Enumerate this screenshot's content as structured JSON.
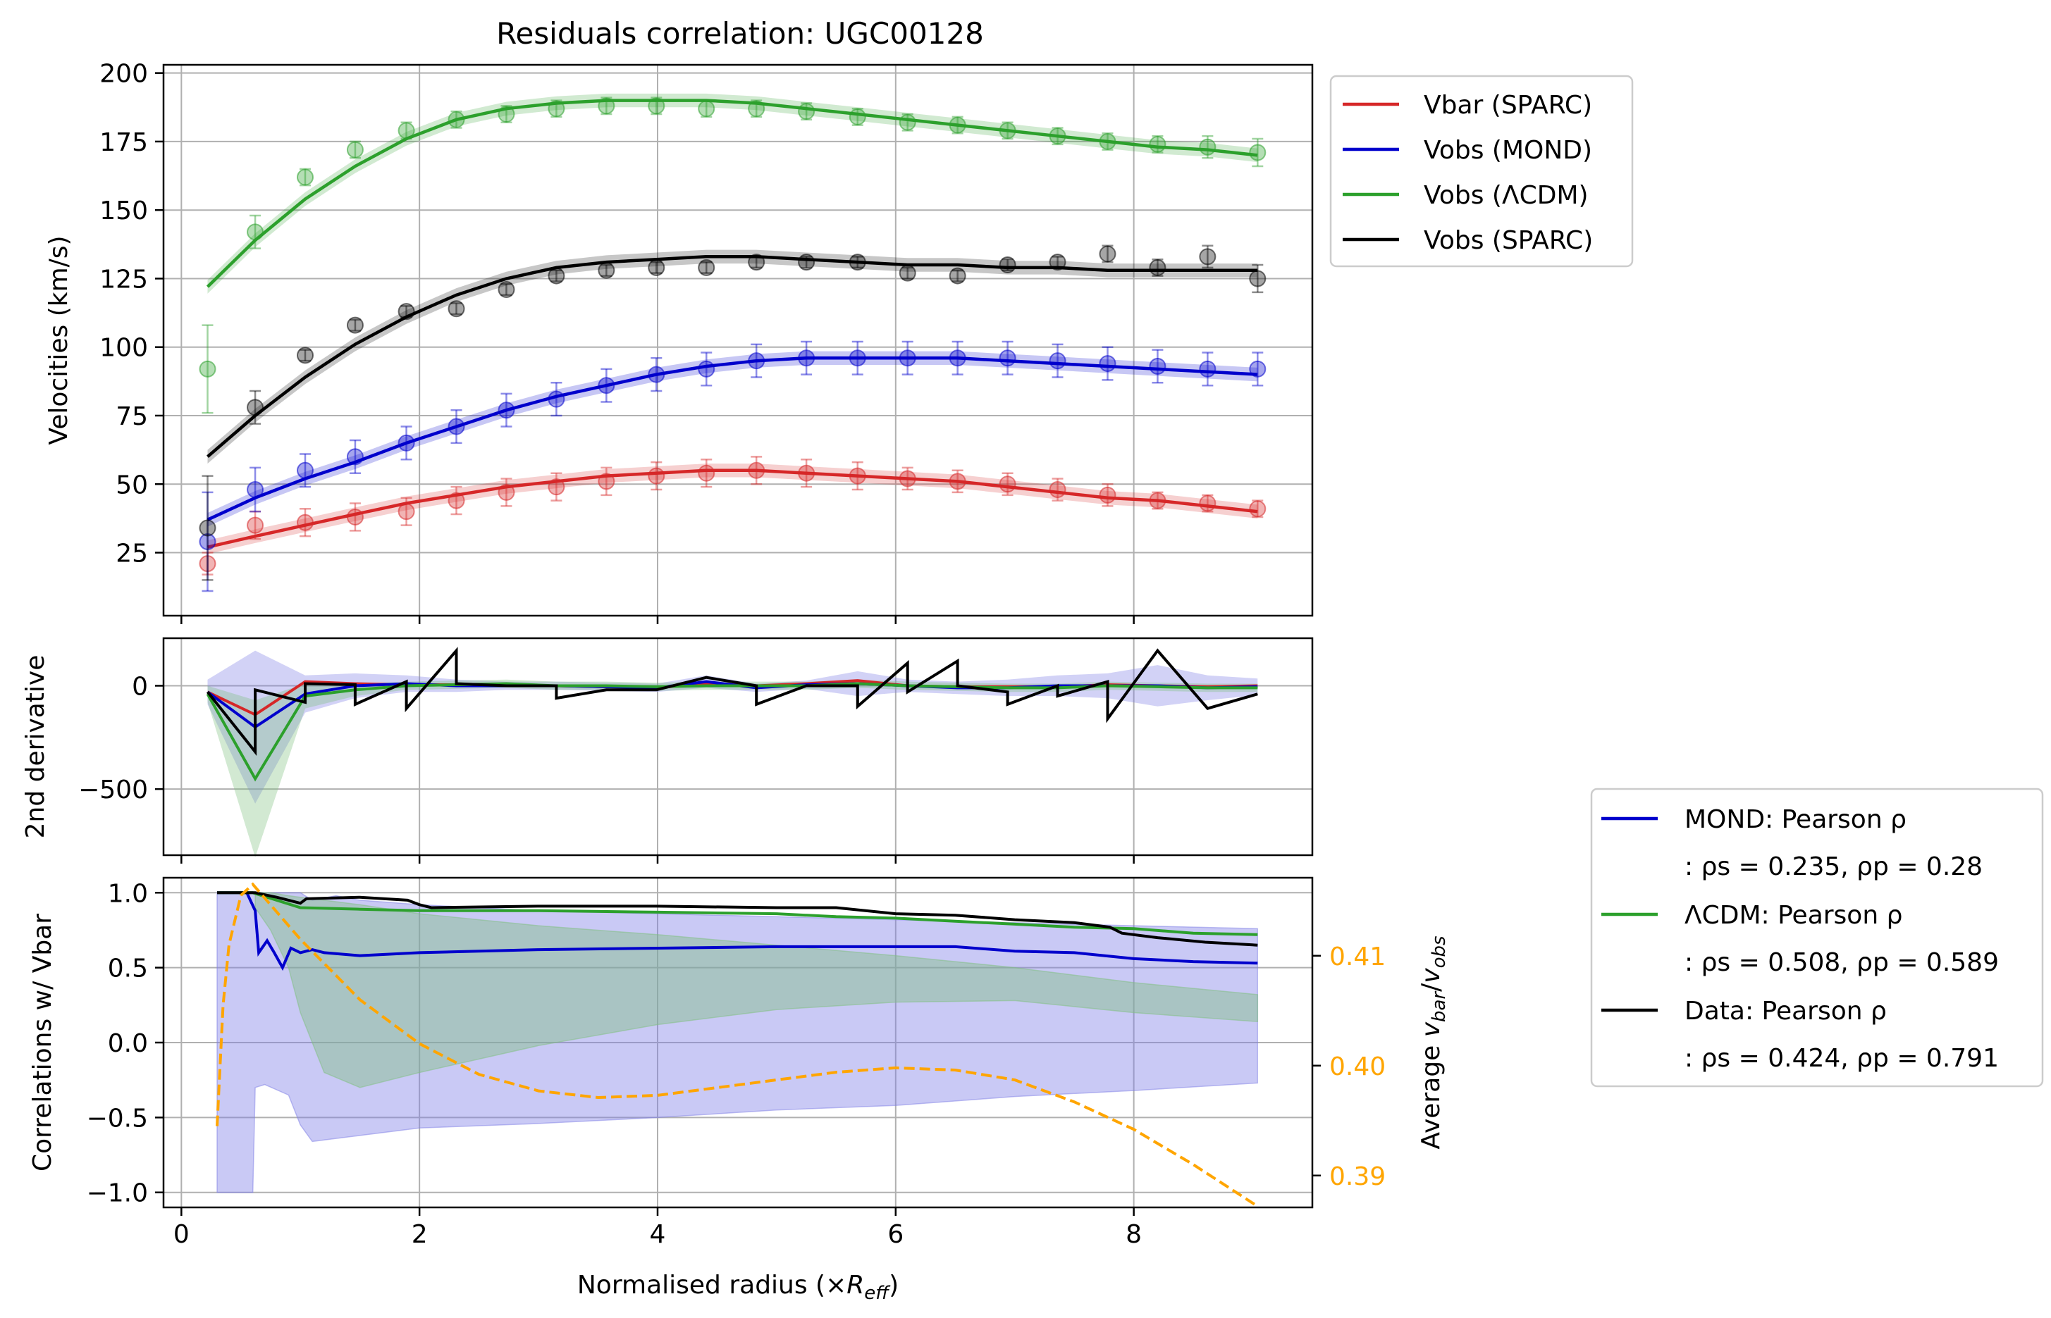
{
  "title": "Residuals correlation: UGC00128",
  "colors": {
    "vbar": "#d62728",
    "mond": "#0000cc",
    "lcdm": "#2ca02c",
    "sparc": "#000000",
    "orange": "#ffa500",
    "band_blue": "#7f7fe6",
    "band_green": "#7fbf7f"
  },
  "chart_data": [
    {
      "type": "line",
      "panel": "velocities",
      "ylabel": "Velocities (km/s)",
      "xlim": [
        -0.15,
        9.5
      ],
      "ylim": [
        2,
        203
      ],
      "yticks": [
        "25",
        "50",
        "75",
        "100",
        "125",
        "150",
        "175",
        "200"
      ],
      "ytick_values": [
        25,
        50,
        75,
        100,
        125,
        150,
        175,
        200
      ],
      "legend": {
        "placement": "outside-right-top",
        "entries": [
          "Vbar (SPARC)",
          "Vobs (MOND)",
          "Vobs (ΛCDM)",
          "Vobs (SPARC)"
        ]
      },
      "x": [
        0.22,
        0.62,
        1.04,
        1.46,
        1.89,
        2.31,
        2.73,
        3.15,
        3.57,
        3.99,
        4.41,
        4.83,
        5.25,
        5.68,
        6.1,
        6.52,
        6.94,
        7.36,
        7.78,
        8.2,
        8.62,
        9.04
      ],
      "series": [
        {
          "name": "Vbar (SPARC)",
          "color": "vbar",
          "points": [
            21,
            35,
            36,
            38,
            40,
            44,
            47,
            49,
            51,
            53,
            54,
            55,
            54,
            53,
            52,
            51,
            50,
            48,
            46,
            44,
            43,
            41
          ],
          "err": [
            4,
            5,
            5,
            5,
            5,
            5,
            5,
            5,
            5,
            5,
            5,
            5,
            5,
            5,
            4,
            4,
            4,
            4,
            4,
            3,
            3,
            3
          ],
          "fit": [
            27,
            31,
            35,
            39,
            43,
            46,
            49,
            51,
            53,
            54,
            55,
            55,
            54,
            53,
            52,
            51,
            49,
            47,
            45,
            44,
            42,
            40
          ]
        },
        {
          "name": "Vobs (MOND)",
          "color": "mond",
          "points": [
            29,
            48,
            55,
            60,
            65,
            71,
            77,
            81,
            86,
            90,
            92,
            95,
            96,
            96,
            96,
            96,
            96,
            95,
            94,
            93,
            92,
            92
          ],
          "err": [
            18,
            8,
            6,
            6,
            6,
            6,
            6,
            6,
            6,
            6,
            6,
            6,
            6,
            6,
            6,
            6,
            6,
            6,
            6,
            6,
            6,
            6
          ],
          "fit": [
            37,
            45,
            52,
            58,
            65,
            71,
            77,
            82,
            86,
            90,
            93,
            95,
            96,
            96,
            96,
            96,
            95,
            94,
            93,
            92,
            91,
            90
          ]
        },
        {
          "name": "Vobs (ΛCDM)",
          "color": "lcdm",
          "points": [
            92,
            142,
            162,
            172,
            179,
            183,
            185,
            187,
            188,
            188,
            187,
            187,
            186,
            184,
            182,
            181,
            179,
            177,
            175,
            174,
            173,
            171
          ],
          "err": [
            16,
            6,
            3,
            3,
            3,
            3,
            3,
            3,
            3,
            3,
            3,
            3,
            3,
            3,
            3,
            3,
            3,
            3,
            3,
            3,
            4,
            5
          ],
          "fit": [
            122,
            139,
            154,
            166,
            176,
            183,
            187,
            189,
            190,
            190,
            190,
            189,
            187,
            185,
            183,
            181,
            179,
            177,
            175,
            173,
            172,
            170
          ]
        },
        {
          "name": "Vobs (SPARC)",
          "color": "sparc",
          "points": [
            34,
            78,
            97,
            108,
            113,
            114,
            121,
            126,
            128,
            129,
            129,
            131,
            131,
            131,
            127,
            126,
            130,
            131,
            134,
            129,
            133,
            125
          ],
          "err": [
            19,
            6,
            2,
            2,
            2,
            2,
            2,
            2,
            2,
            2,
            2,
            2,
            2,
            2,
            2,
            2,
            2,
            2,
            3,
            3,
            4,
            5
          ],
          "fit": [
            60,
            75,
            89,
            101,
            111,
            119,
            125,
            129,
            131,
            132,
            133,
            133,
            132,
            131,
            130,
            130,
            129,
            129,
            128,
            128,
            128,
            128
          ]
        }
      ]
    },
    {
      "type": "line",
      "panel": "second-derivative",
      "ylabel": "2nd derivative",
      "xlim": [
        -0.15,
        9.5
      ],
      "ylim": [
        -820,
        230
      ],
      "yticks": [
        "0",
        "−500"
      ],
      "ytick_values": [
        0,
        -500
      ],
      "series": [
        {
          "name": "Vbar",
          "color": "vbar",
          "x": [
            0.22,
            0.62,
            1.04,
            1.46,
            1.89,
            2.31,
            2.73,
            3.15,
            3.57,
            3.99,
            4.41,
            4.83,
            5.25,
            5.68,
            6.1,
            6.52,
            6.94,
            7.36,
            7.78,
            8.2,
            8.62,
            9.04
          ],
          "y": [
            -30,
            -140,
            20,
            10,
            5,
            5,
            0,
            0,
            -5,
            -10,
            10,
            0,
            10,
            25,
            0,
            -5,
            -5,
            -5,
            5,
            0,
            -5,
            0
          ]
        },
        {
          "name": "MOND",
          "color": "mond",
          "x": [
            0.22,
            0.62,
            1.04,
            1.46,
            1.89,
            2.31,
            2.73,
            3.15,
            3.57,
            3.99,
            4.41,
            4.83,
            5.25,
            5.68,
            6.1,
            6.52,
            6.94,
            7.36,
            7.78,
            8.2,
            8.62,
            9.04
          ],
          "y": [
            -30,
            -200,
            -40,
            0,
            10,
            0,
            0,
            0,
            -5,
            -10,
            20,
            -10,
            5,
            10,
            0,
            -10,
            -10,
            0,
            0,
            0,
            -10,
            -5
          ]
        },
        {
          "name": "ΛCDM",
          "color": "lcdm",
          "x": [
            0.22,
            0.62,
            1.04,
            1.46,
            1.89,
            2.31,
            2.73,
            3.15,
            3.57,
            3.99,
            4.41,
            4.83,
            5.25,
            5.68,
            6.1,
            6.52,
            6.94,
            7.36,
            7.78,
            8.2,
            8.62,
            9.04
          ],
          "y": [
            -40,
            -450,
            -50,
            -20,
            0,
            5,
            10,
            0,
            0,
            -5,
            0,
            0,
            0,
            10,
            0,
            -5,
            -10,
            -10,
            0,
            -5,
            -10,
            -10
          ]
        },
        {
          "name": "Data",
          "color": "sparc",
          "x": [
            0.22,
            0.62,
            0.62,
            1.04,
            1.04,
            1.46,
            1.46,
            1.89,
            1.89,
            2.31,
            2.31,
            2.73,
            3.15,
            3.15,
            3.57,
            3.99,
            4.41,
            4.83,
            4.83,
            5.25,
            5.68,
            5.68,
            6.1,
            6.1,
            6.52,
            6.52,
            6.94,
            6.94,
            7.36,
            7.36,
            7.78,
            7.78,
            8.2,
            8.62,
            9.04
          ],
          "y": [
            -30,
            -320,
            -20,
            -80,
            10,
            5,
            -90,
            20,
            -110,
            170,
            10,
            0,
            0,
            -60,
            -20,
            -20,
            40,
            0,
            -90,
            0,
            0,
            -100,
            110,
            -30,
            120,
            0,
            -30,
            -90,
            0,
            -50,
            20,
            -160,
            170,
            -110,
            -40
          ]
        }
      ]
    },
    {
      "type": "line",
      "panel": "correlations",
      "ylabel": "Correlations w/ Vbar",
      "xlabel": "Normalised radius (×R_eff)",
      "xlim": [
        -0.15,
        9.5
      ],
      "ylim": [
        -1.1,
        1.1
      ],
      "xticks": [
        "0",
        "2",
        "4",
        "6",
        "8"
      ],
      "xtick_values": [
        0,
        2,
        4,
        6,
        8
      ],
      "yticks": [
        "1.0",
        "0.5",
        "0.0",
        "−0.5",
        "−1.0"
      ],
      "ytick_values": [
        1.0,
        0.5,
        0.0,
        -0.5,
        -1.0
      ],
      "right_axis": {
        "ylabel": "Average v_bar/v_obs",
        "ylim": [
          0.3871,
          0.4171
        ],
        "yticks": [
          "0.41",
          "0.40",
          "0.39"
        ],
        "ytick_values": [
          0.41,
          0.4,
          0.39
        ]
      },
      "legend": {
        "placement": "outside-right-bottom",
        "entries": [
          {
            "name": "MOND: Pearson ρ",
            "stats": ": ρs = 0.235, ρp = 0.28",
            "color": "mond"
          },
          {
            "name": "ΛCDM: Pearson ρ",
            "stats": ": ρs = 0.508, ρp = 0.589",
            "color": "lcdm"
          },
          {
            "name": "Data: Pearson ρ",
            "stats": ": ρs = 0.424, ρp = 0.791",
            "color": "sparc"
          }
        ]
      },
      "series": [
        {
          "name": "MOND",
          "color": "mond",
          "x": [
            0.3,
            0.55,
            0.62,
            0.65,
            0.72,
            0.78,
            0.85,
            0.92,
            1.0,
            1.1,
            1.2,
            1.5,
            2.0,
            3.0,
            4.0,
            5.0,
            6.0,
            6.5,
            7.0,
            7.5,
            8.0,
            8.5,
            9.04
          ],
          "y": [
            1.0,
            1.0,
            0.88,
            0.6,
            0.68,
            0.6,
            0.5,
            0.63,
            0.6,
            0.62,
            0.6,
            0.58,
            0.6,
            0.62,
            0.63,
            0.64,
            0.64,
            0.64,
            0.61,
            0.6,
            0.56,
            0.54,
            0.53
          ]
        },
        {
          "name": "ΛCDM",
          "color": "lcdm",
          "x": [
            0.3,
            0.6,
            1.0,
            1.5,
            2.0,
            3.0,
            4.0,
            5.0,
            5.5,
            6.0,
            6.5,
            7.0,
            7.5,
            8.0,
            8.5,
            9.04
          ],
          "y": [
            1.0,
            1.0,
            0.9,
            0.89,
            0.88,
            0.88,
            0.87,
            0.86,
            0.84,
            0.83,
            0.81,
            0.79,
            0.77,
            0.76,
            0.73,
            0.72
          ]
        },
        {
          "name": "Data",
          "color": "sparc",
          "x": [
            0.3,
            0.62,
            0.8,
            1.0,
            1.05,
            1.5,
            1.9,
            2.0,
            2.1,
            3.0,
            4.0,
            5.0,
            5.5,
            6.0,
            6.5,
            7.0,
            7.5,
            7.8,
            7.9,
            8.2,
            8.6,
            9.04
          ],
          "y": [
            1.0,
            1.0,
            0.97,
            0.93,
            0.96,
            0.97,
            0.95,
            0.92,
            0.9,
            0.91,
            0.91,
            0.9,
            0.9,
            0.86,
            0.85,
            0.82,
            0.8,
            0.77,
            0.73,
            0.7,
            0.67,
            0.65
          ]
        },
        {
          "name": "Average v_bar/v_obs",
          "color": "orange",
          "axis": "right",
          "x": [
            0.3,
            0.35,
            0.4,
            0.5,
            0.6,
            0.8,
            1.0,
            1.5,
            2.0,
            2.5,
            3.0,
            3.5,
            4.0,
            4.5,
            5.0,
            5.5,
            6.0,
            6.5,
            7.0,
            7.5,
            8.0,
            8.5,
            9.04
          ],
          "y": [
            0.3945,
            0.4055,
            0.411,
            0.4155,
            0.4165,
            0.414,
            0.4115,
            0.406,
            0.402,
            0.3992,
            0.3977,
            0.3971,
            0.3973,
            0.398,
            0.3987,
            0.3994,
            0.3998,
            0.3996,
            0.3987,
            0.3967,
            0.3942,
            0.391,
            0.3872
          ]
        }
      ],
      "bands": [
        {
          "name": "MOND band",
          "color": "band_blue",
          "x": [
            0.3,
            0.6,
            0.62,
            0.7,
            0.9,
            1.0,
            1.1,
            1.3,
            1.5,
            2.0,
            3.0,
            4.0,
            5.0,
            6.0,
            7.0,
            8.0,
            9.04
          ],
          "upper": [
            1.0,
            1.0,
            1.0,
            1.0,
            1.0,
            1.0,
            0.95,
            0.98,
            0.95,
            0.92,
            0.88,
            0.86,
            0.84,
            0.82,
            0.8,
            0.78,
            0.76
          ],
          "lower": [
            -1.0,
            -1.0,
            -0.3,
            -0.28,
            -0.35,
            -0.55,
            -0.66,
            -0.64,
            -0.62,
            -0.57,
            -0.54,
            -0.5,
            -0.45,
            -0.42,
            -0.36,
            -0.32,
            -0.27
          ]
        },
        {
          "name": "ΛCDM band",
          "color": "band_green",
          "x": [
            0.62,
            0.75,
            0.9,
            1.0,
            1.2,
            1.5,
            2.0,
            3.0,
            4.0,
            5.0,
            6.0,
            7.0,
            8.0,
            9.04
          ],
          "upper": [
            1.0,
            1.0,
            0.98,
            0.97,
            0.95,
            0.92,
            0.86,
            0.78,
            0.72,
            0.65,
            0.58,
            0.5,
            0.4,
            0.32
          ],
          "lower": [
            0.9,
            0.75,
            0.5,
            0.2,
            -0.2,
            -0.3,
            -0.2,
            -0.02,
            0.12,
            0.22,
            0.27,
            0.28,
            0.2,
            0.14
          ]
        }
      ]
    }
  ]
}
